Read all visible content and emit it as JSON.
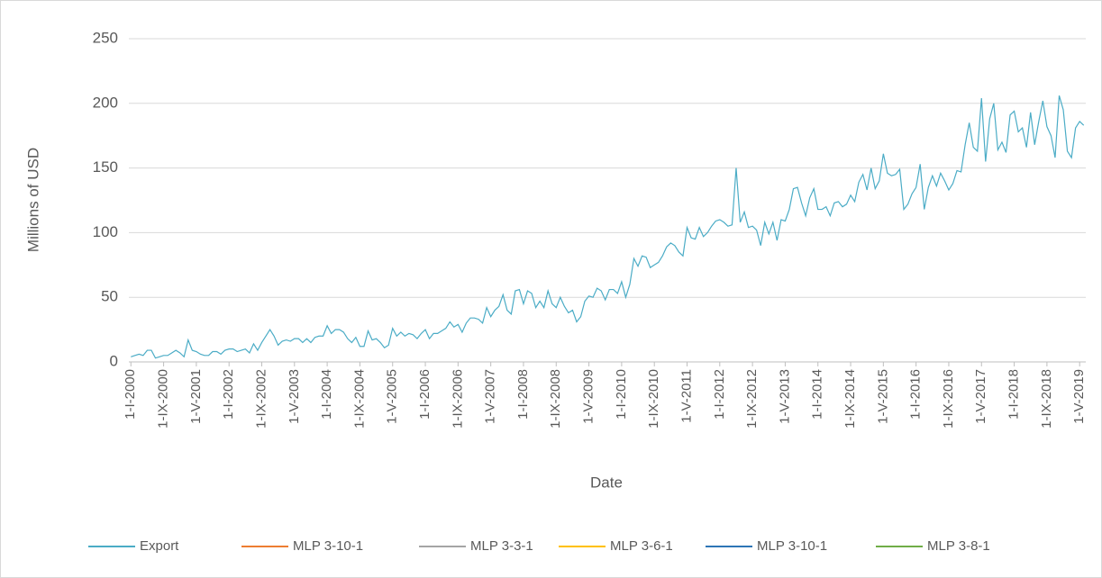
{
  "chart_data": {
    "type": "line",
    "x_label": "Date",
    "y_label": "Millions of USD",
    "ylim": [
      0,
      250
    ],
    "yticks": [
      0,
      50,
      100,
      150,
      200,
      250
    ],
    "grid": true,
    "legend": "bottom",
    "categories": [
      "1-I-2000",
      null,
      null,
      null,
      null,
      null,
      null,
      null,
      "1-IX-2000",
      null,
      null,
      null,
      null,
      null,
      null,
      null,
      "1-V-2001",
      null,
      null,
      null,
      null,
      null,
      null,
      null,
      "1-I-2002",
      null,
      null,
      null,
      null,
      null,
      null,
      null,
      "1-IX-2002",
      null,
      null,
      null,
      null,
      null,
      null,
      null,
      "1-V-2003",
      null,
      null,
      null,
      null,
      null,
      null,
      null,
      "1-I-2004",
      null,
      null,
      null,
      null,
      null,
      null,
      null,
      "1-IX-2004",
      null,
      null,
      null,
      null,
      null,
      null,
      null,
      "1-V-2005",
      null,
      null,
      null,
      null,
      null,
      null,
      null,
      "1-I-2006",
      null,
      null,
      null,
      null,
      null,
      null,
      null,
      "1-IX-2006",
      null,
      null,
      null,
      null,
      null,
      null,
      null,
      "1-V-2007",
      null,
      null,
      null,
      null,
      null,
      null,
      null,
      "1-I-2008",
      null,
      null,
      null,
      null,
      null,
      null,
      null,
      "1-IX-2008",
      null,
      null,
      null,
      null,
      null,
      null,
      null,
      "1-V-2009",
      null,
      null,
      null,
      null,
      null,
      null,
      null,
      "1-I-2010",
      null,
      null,
      null,
      null,
      null,
      null,
      null,
      "1-IX-2010",
      null,
      null,
      null,
      null,
      null,
      null,
      null,
      "1-V-2011",
      null,
      null,
      null,
      null,
      null,
      null,
      null,
      "1-I-2012",
      null,
      null,
      null,
      null,
      null,
      null,
      null,
      "1-IX-2012",
      null,
      null,
      null,
      null,
      null,
      null,
      null,
      "1-V-2013",
      null,
      null,
      null,
      null,
      null,
      null,
      null,
      "1-I-2014",
      null,
      null,
      null,
      null,
      null,
      null,
      null,
      "1-IX-2014",
      null,
      null,
      null,
      null,
      null,
      null,
      null,
      "1-V-2015",
      null,
      null,
      null,
      null,
      null,
      null,
      null,
      "1-I-2016",
      null,
      null,
      null,
      null,
      null,
      null,
      null,
      "1-IX-2016",
      null,
      null,
      null,
      null,
      null,
      null,
      null,
      "1-V-2017",
      null,
      null,
      null,
      null,
      null,
      null,
      null,
      "1-I-2018",
      null,
      null,
      null,
      null,
      null,
      null,
      null,
      "1-IX-2018",
      null,
      null,
      null,
      null,
      null,
      null,
      null,
      "1-V-2019",
      null
    ],
    "series": [
      {
        "name": "Export",
        "color": "#4bacc6",
        "values": [
          4,
          5,
          6,
          5,
          9,
          9,
          3,
          4,
          5,
          5,
          7,
          9,
          7,
          4,
          17,
          9,
          8,
          6,
          5,
          5,
          8,
          8,
          6,
          9,
          10,
          10,
          8,
          9,
          10,
          7,
          14,
          9,
          15,
          20,
          25,
          20,
          13,
          16,
          17,
          16,
          18,
          18,
          15,
          18,
          15,
          19,
          20,
          20,
          28,
          22,
          25,
          25,
          23,
          18,
          15,
          19,
          12,
          12,
          24,
          17,
          18,
          15,
          11,
          13,
          26,
          20,
          23,
          20,
          22,
          21,
          18,
          22,
          25,
          18,
          22,
          22,
          24,
          26,
          31,
          27,
          29,
          23,
          30,
          34,
          34,
          33,
          30,
          42,
          35,
          40,
          43,
          52,
          40,
          37,
          55,
          56,
          45,
          55,
          53,
          42,
          47,
          42,
          55,
          45,
          42,
          50,
          43,
          38,
          40,
          31,
          35,
          47,
          51,
          50,
          57,
          55,
          48,
          56,
          56,
          53,
          62,
          50,
          60,
          80,
          74,
          82,
          81,
          73,
          75,
          77,
          82,
          89,
          92,
          90,
          85,
          82,
          104,
          96,
          95,
          104,
          97,
          100,
          105,
          109,
          110,
          108,
          105,
          106,
          150,
          108,
          116,
          104,
          105,
          102,
          90,
          108,
          99,
          108,
          94,
          110,
          109,
          118,
          134,
          135,
          123,
          113,
          127,
          134,
          118,
          118,
          120,
          113,
          123,
          124,
          120,
          122,
          129,
          124,
          139,
          145,
          133,
          150,
          134,
          140,
          161,
          146,
          144,
          145,
          149,
          118,
          122,
          130,
          135,
          153,
          118,
          135,
          144,
          136,
          146,
          140,
          133,
          138,
          148,
          147,
          168,
          185,
          166,
          163,
          204,
          155,
          188,
          200,
          164,
          170,
          162,
          191,
          194,
          178,
          181,
          166,
          193,
          168,
          186,
          202,
          182,
          175,
          158,
          206,
          195,
          163,
          158,
          181,
          186,
          183
        ]
      },
      {
        "name": "MLP 3-10-1",
        "color": "#ed7d31"
      },
      {
        "name": "MLP 3-3-1",
        "color": "#a5a5a5"
      },
      {
        "name": "MLP 3-6-1",
        "color": "#ffc000"
      },
      {
        "name": "MLP 3-10-1",
        "color": "#2e75b6"
      },
      {
        "name": "MLP 3-8-1",
        "color": "#70ad47"
      }
    ]
  }
}
